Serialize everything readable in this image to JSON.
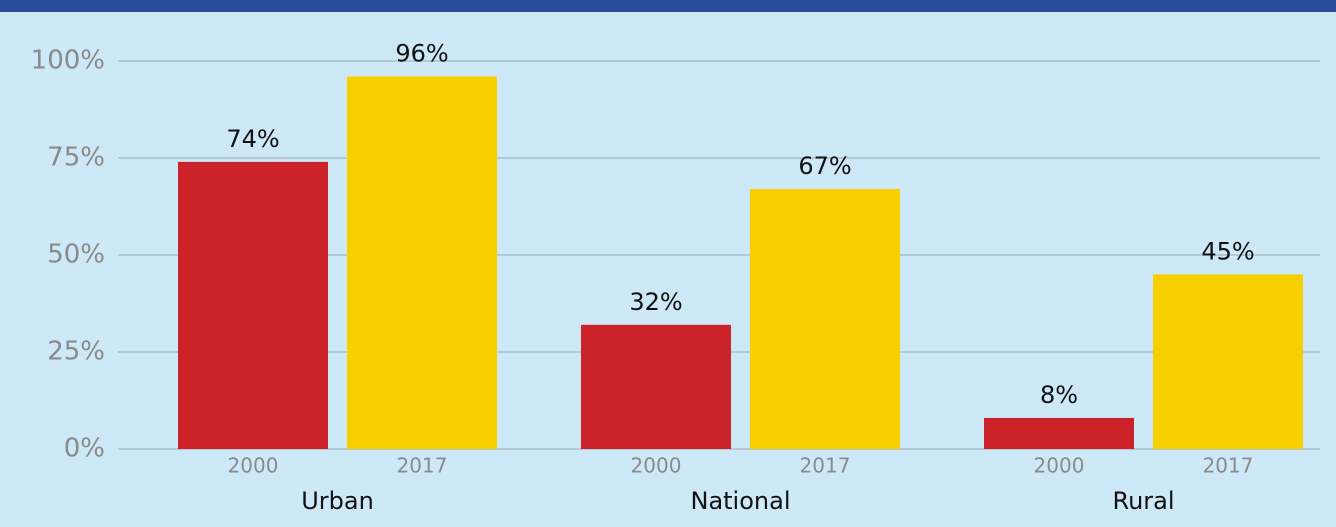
{
  "chart_data": {
    "type": "bar",
    "categories": [
      "Urban",
      "National",
      "Rural"
    ],
    "series": [
      {
        "name": "2000",
        "color": "#cc2229",
        "values": [
          74,
          32,
          8
        ],
        "value_labels": [
          "74%",
          "32%",
          "8%"
        ]
      },
      {
        "name": "2017",
        "color": "#f8d000",
        "values": [
          96,
          67,
          45
        ],
        "value_labels": [
          "96%",
          "67%",
          "45%"
        ]
      }
    ],
    "ylim": [
      0,
      100
    ],
    "yticks": [
      {
        "value": 0,
        "label": "0%"
      },
      {
        "value": 25,
        "label": "25%"
      },
      {
        "value": 50,
        "label": "50%"
      },
      {
        "value": 75,
        "label": "75%"
      },
      {
        "value": 100,
        "label": "100%"
      }
    ],
    "grid": true
  }
}
